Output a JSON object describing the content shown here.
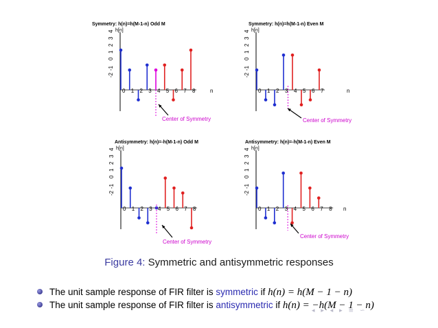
{
  "chart_data": [
    {
      "type": "stem",
      "title": "Symmetry: h(n)=h(M-1-n)  Odd M",
      "ylabel": "h[n]",
      "xlabel": "n",
      "x_ticks": [
        "0",
        "1",
        "2",
        "3",
        "4",
        "5",
        "6",
        "7",
        "8"
      ],
      "y_ticks": [
        "-2",
        "-1",
        "0",
        "1",
        "2",
        "3",
        "4"
      ],
      "ylim": [
        -2,
        4
      ],
      "center_n": 4,
      "annotation": "Center of Symmetry",
      "series": [
        {
          "color": "#1f2fd0",
          "x": [
            0,
            1,
            2,
            3
          ],
          "y": [
            4,
            2,
            -1,
            2.5
          ]
        },
        {
          "color": "#dd00dd",
          "x": [
            4
          ],
          "y": [
            2
          ]
        },
        {
          "color": "#e02020",
          "x": [
            5,
            6,
            7,
            8
          ],
          "y": [
            2.5,
            -1,
            2,
            4
          ]
        }
      ]
    },
    {
      "type": "stem",
      "title": "Symmetry: h(n)=h(M-1-n)  Even M",
      "ylabel": "h[n]",
      "xlabel": "n",
      "x_ticks": [
        "0",
        "1",
        "2",
        "3",
        "4",
        "5",
        "6",
        "7"
      ],
      "y_ticks": [
        "-2",
        "-1",
        "0",
        "1",
        "2",
        "3",
        "4"
      ],
      "ylim": [
        -2,
        4
      ],
      "center_n": 3.5,
      "annotation": "Center of Symmetry",
      "series": [
        {
          "color": "#1f2fd0",
          "x": [
            0,
            1,
            2,
            3
          ],
          "y": [
            2,
            -1,
            -1.5,
            3.5
          ]
        },
        {
          "color": "#e02020",
          "x": [
            4,
            5,
            6,
            7
          ],
          "y": [
            3.5,
            -1.5,
            -1,
            2
          ]
        }
      ]
    },
    {
      "type": "stem",
      "title": "Antisymmetry: h(n)=-h(M-1-n)  Odd M",
      "ylabel": "h[n]",
      "xlabel": "",
      "x_ticks": [
        "0",
        "1",
        "2",
        "3",
        "4",
        "5",
        "6",
        "7",
        "8"
      ],
      "y_ticks": [
        "-2",
        "-1",
        "0",
        "1",
        "2",
        "3",
        "4"
      ],
      "ylim": [
        -2,
        4
      ],
      "center_n": 4,
      "annotation": "Center of Symmetry",
      "series": [
        {
          "color": "#1f2fd0",
          "x": [
            0,
            1,
            2,
            3
          ],
          "y": [
            4,
            2,
            -1,
            -1.5
          ]
        },
        {
          "color": "#1f2fd0",
          "x": [
            4
          ],
          "y": [
            0
          ]
        },
        {
          "color": "#e02020",
          "x": [
            5,
            6,
            7,
            8
          ],
          "y": [
            3,
            2,
            1.5,
            -2
          ]
        }
      ]
    },
    {
      "type": "stem",
      "title": "Antisymmetry: h(n)=-h(M-1-n)  Even M",
      "ylabel": "h[n]",
      "xlabel": "n",
      "x_ticks": [
        "0",
        "1",
        "2",
        "3",
        "4",
        "5",
        "6",
        "7",
        "8"
      ],
      "y_ticks": [
        "-2",
        "-1",
        "0",
        "1",
        "2",
        "3",
        "4"
      ],
      "ylim": [
        -2,
        4
      ],
      "center_n": 3.5,
      "annotation": "Center of Symmetry",
      "series": [
        {
          "color": "#1f2fd0",
          "x": [
            0,
            1,
            2,
            3
          ],
          "y": [
            2,
            -1,
            -1.5,
            3.5
          ]
        },
        {
          "color": "#e02020",
          "x": [
            4,
            5,
            6,
            7
          ],
          "y": [
            -1.5,
            3.5,
            2,
            1
          ]
        }
      ]
    }
  ],
  "caption": {
    "figure_label": "Figure 4:",
    "text": "Symmetric and antisymmetric responses"
  },
  "bullets": [
    {
      "prefix": "The unit sample response of FIR filter is ",
      "keyword": "symmetric",
      "mid": " if ",
      "math": "h(n) = h(M − 1 − n)"
    },
    {
      "prefix": "The unit sample response of FIR filter is ",
      "keyword": "antisymmetric",
      "mid": " if ",
      "math": "h(n) = −h(M − 1 − n)"
    }
  ],
  "nav_icons": "◂ ▸ ◂ ▸ ≡ ∽"
}
